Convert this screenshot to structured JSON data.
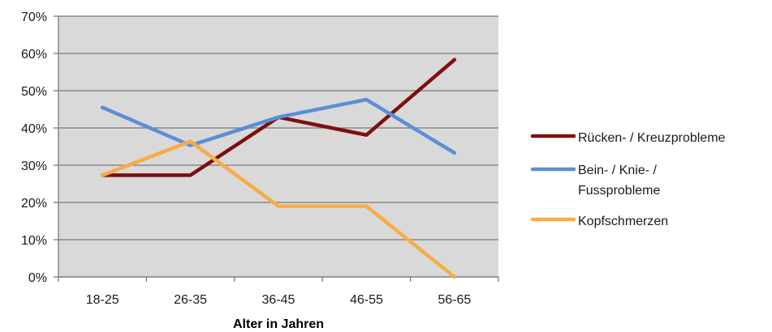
{
  "chart_data": {
    "type": "line",
    "title": "",
    "xlabel": "Alter in Jahren",
    "ylabel": "",
    "categories": [
      "18-25",
      "26-35",
      "36-45",
      "46-55",
      "56-65"
    ],
    "ylim": [
      0,
      70
    ],
    "y_ticks": [
      "0%",
      "10%",
      "20%",
      "30%",
      "40%",
      "50%",
      "60%",
      "70%"
    ],
    "grid": true,
    "plot_background": "#d9d9d9",
    "legend_position": "right",
    "series": [
      {
        "name_lines": [
          "Rücken- / Kreuzprobleme"
        ],
        "color": "#7f0f0f",
        "values": [
          27.3,
          27.3,
          42.9,
          38.1,
          58.3
        ]
      },
      {
        "name_lines": [
          "Bein- / Knie- /",
          "Fussprobleme"
        ],
        "color": "#5b8fd6",
        "values": [
          45.5,
          35.3,
          42.9,
          47.6,
          33.3
        ]
      },
      {
        "name_lines": [
          "Kopfschmerzen"
        ],
        "color": "#f7ac45",
        "values": [
          27.3,
          36.4,
          19.0,
          19.0,
          0
        ]
      }
    ]
  }
}
